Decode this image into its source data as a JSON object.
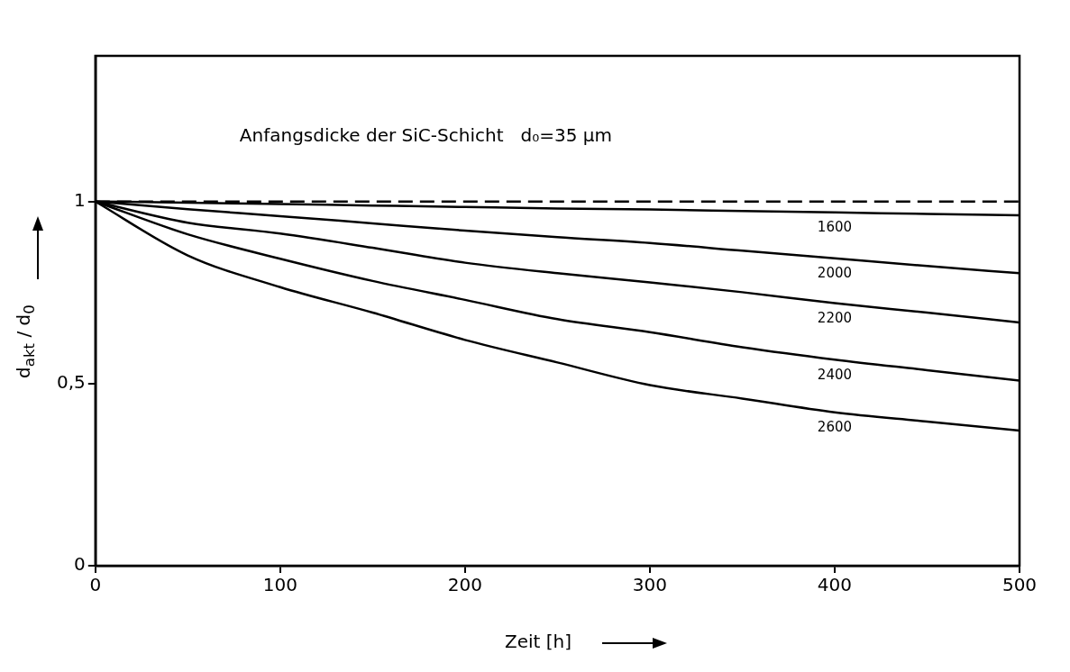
{
  "chart_data": {
    "type": "line",
    "xlabel": "Zeit [h]",
    "ylabel": "d$_{akt}$ / d$_{0}$",
    "annotations": [
      "Anfangsdicke der SiC-Schicht   d₀=35 µm"
    ],
    "x": [
      0,
      50,
      100,
      150,
      200,
      250,
      300,
      350,
      400,
      450,
      500
    ],
    "series": [
      {
        "name": "1600",
        "color": "#000000",
        "values": [
          1,
          0.997,
          0.993,
          0.989,
          0.985,
          0.981,
          0.978,
          0.974,
          0.97,
          0.966,
          0.962
        ]
      },
      {
        "name": "2000",
        "color": "#000000",
        "values": [
          1,
          0.979,
          0.96,
          0.94,
          0.92,
          0.902,
          0.886,
          0.865,
          0.844,
          0.823,
          0.803
        ]
      },
      {
        "name": "2200",
        "color": "#000000",
        "values": [
          1,
          0.942,
          0.912,
          0.873,
          0.832,
          0.803,
          0.778,
          0.751,
          0.721,
          0.695,
          0.668
        ]
      },
      {
        "name": "2400",
        "color": "#000000",
        "values": [
          1,
          0.91,
          0.843,
          0.782,
          0.73,
          0.677,
          0.641,
          0.6,
          0.566,
          0.537,
          0.508
        ]
      },
      {
        "name": "2600",
        "color": "#000000",
        "values": [
          1,
          0.852,
          0.765,
          0.695,
          0.62,
          0.558,
          0.496,
          0.459,
          0.421,
          0.396,
          0.371
        ]
      }
    ],
    "ref_lines": [
      {
        "axis": "y",
        "value": 1,
        "color": "#000000",
        "line_style": "dashed"
      }
    ],
    "xlim": [
      0,
      500
    ],
    "xticks": [
      0,
      100,
      200,
      300,
      400,
      500
    ],
    "ylim": [
      0,
      1.4
    ],
    "yticks": [
      0,
      {
        "value": 0.5,
        "label": "0,5"
      },
      1
    ],
    "grid": false,
    "legend": false,
    "marker": "none",
    "line_style": "solid"
  }
}
